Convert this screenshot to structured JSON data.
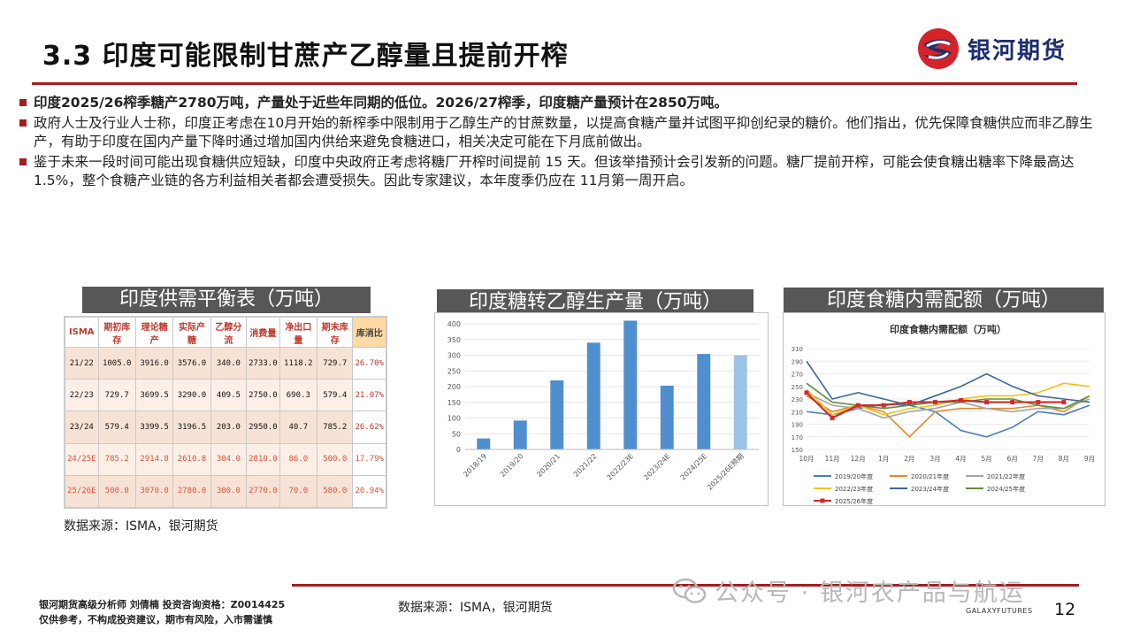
{
  "header": {
    "title": "3.3  印度可能限制甘蔗产乙醇量且提前开榨",
    "logo_text": "银河期货"
  },
  "bullets": [
    "印度2025/26榨季糖产2780万吨，产量处于近些年同期的低位。2026/27榨季，印度糖产量预计在2850万吨。",
    "政府人士及行业人士称，印度正考虑在10月开始的新榨季中限制用于乙醇生产的甘蔗数量，以提高食糖产量并试图平抑创纪录的糖价。他们指出，优先保障食糖供应而非乙醇生产，有助于印度在国内产量下降时通过增加国内供给来避免食糖进口，相关决定可能在下月底前做出。",
    "鉴于未来一段时间可能出现食糖供应短缺，印度中央政府正考虑将糖厂开榨时间提前 15 天。但该举措预计会引发新的问题。糖厂提前开榨，可能会使食糖出糖率下降最高达1.5%，整个食糖产业链的各方利益相关者都会遭受损失。因此专家建议，本年度季仍应在 11月第一周开启。"
  ],
  "captions": {
    "table": "印度供需平衡表（万吨）",
    "ethanol": "印度糖转乙醇生产量（万吨）",
    "quota": "印度食糖内需配额（万吨）"
  },
  "balance_table": {
    "headers": [
      "ISMA",
      "期初库存",
      "理论糖产",
      "实际产糖",
      "乙醇分流",
      "消费量",
      "净出口量",
      "期末库存",
      "库消比"
    ],
    "rows": [
      [
        "21/22",
        "1005.0",
        "3916.0",
        "3576.0",
        "340.0",
        "2733.0",
        "1118.2",
        "729.7",
        "26.70%"
      ],
      [
        "22/23",
        "729.7",
        "3699.5",
        "3290.0",
        "409.5",
        "2750.0",
        "690.3",
        "579.4",
        "21.07%"
      ],
      [
        "23/24",
        "579.4",
        "3399.5",
        "3196.5",
        "203.0",
        "2950.0",
        "40.7",
        "785.2",
        "26.62%"
      ],
      [
        "24/25E",
        "785.2",
        "2914.8",
        "2610.8",
        "304.0",
        "2810.0",
        "86.0",
        "500.0",
        "17.79%"
      ],
      [
        "25/26E",
        "500.0",
        "3070.0",
        "2780.0",
        "300.0",
        "2770.0",
        "70.0",
        "580.0",
        "20.94%"
      ]
    ]
  },
  "source_left": "数据来源：ISMA，银河期货",
  "chart_data": [
    {
      "type": "bar",
      "categories": [
        "2018/19",
        "2019/20",
        "2020/21",
        "2021/22",
        "2022/23E",
        "2023/24E",
        "2024/25E",
        "2025/26E预期"
      ],
      "values": [
        35,
        92,
        220,
        340,
        410,
        203,
        304,
        300
      ],
      "title": "",
      "ylim": [
        0,
        400
      ],
      "yticks": [
        0,
        50,
        100,
        150,
        200,
        250,
        300,
        350,
        400
      ],
      "colors": [
        "#4f8fd0",
        "#4f8fd0",
        "#4f8fd0",
        "#4f8fd0",
        "#4f8fd0",
        "#4f8fd0",
        "#4f8fd0",
        "#9cc3e6"
      ]
    },
    {
      "type": "line",
      "title": "印度食糖内需配额（万吨）",
      "categories": [
        "10月",
        "11月",
        "12月",
        "1月",
        "2月",
        "3月",
        "4月",
        "5月",
        "6月",
        "7月",
        "8月",
        "9月"
      ],
      "ylim": [
        150,
        310
      ],
      "yticks": [
        150,
        170,
        190,
        210,
        230,
        250,
        270,
        290,
        310
      ],
      "legend": "bottom",
      "series": [
        {
          "name": "2019/20年度",
          "color": "#4a7ebb",
          "values": [
            210,
            205,
            215,
            222,
            220,
            210,
            180,
            170,
            185,
            210,
            205,
            220
          ]
        },
        {
          "name": "2020/21年度",
          "color": "#e08a2e",
          "values": [
            235,
            210,
            220,
            210,
            170,
            210,
            215,
            215,
            215,
            220,
            210,
            235
          ]
        },
        {
          "name": "2021/22年度",
          "color": "#a5a5a5",
          "values": [
            240,
            220,
            215,
            200,
            210,
            215,
            225,
            215,
            210,
            215,
            215,
            230
          ]
        },
        {
          "name": "2022/23年度",
          "color": "#f2c214",
          "values": [
            245,
            205,
            220,
            205,
            215,
            220,
            230,
            235,
            235,
            240,
            255,
            250
          ]
        },
        {
          "name": "2023/24年度",
          "color": "#3a6a9c",
          "values": [
            290,
            230,
            240,
            230,
            220,
            235,
            250,
            270,
            250,
            235,
            230,
            225
          ]
        },
        {
          "name": "2024/25年度",
          "color": "#5f8f3d",
          "values": [
            255,
            225,
            220,
            215,
            220,
            225,
            225,
            230,
            230,
            220,
            215,
            235
          ]
        },
        {
          "name": "2025/26年度",
          "color": "#d22a2a",
          "values": [
            240,
            200,
            220,
            220,
            225,
            225,
            228,
            225,
            225,
            225,
            225,
            null
          ]
        }
      ]
    }
  ],
  "footer": {
    "analyst_line1": "银河期货高级分析师 刘倩楠 投资咨询资格：Z0014425",
    "analyst_line2": "仅供参考，不构成投资建议，期市有风险，入市需谨慎",
    "source": "数据来源：ISMA，银河期货",
    "watermark": "公众号 · 银河农产品与航运",
    "galaxy": "GALAXYFUTURES",
    "page_number": "12"
  }
}
